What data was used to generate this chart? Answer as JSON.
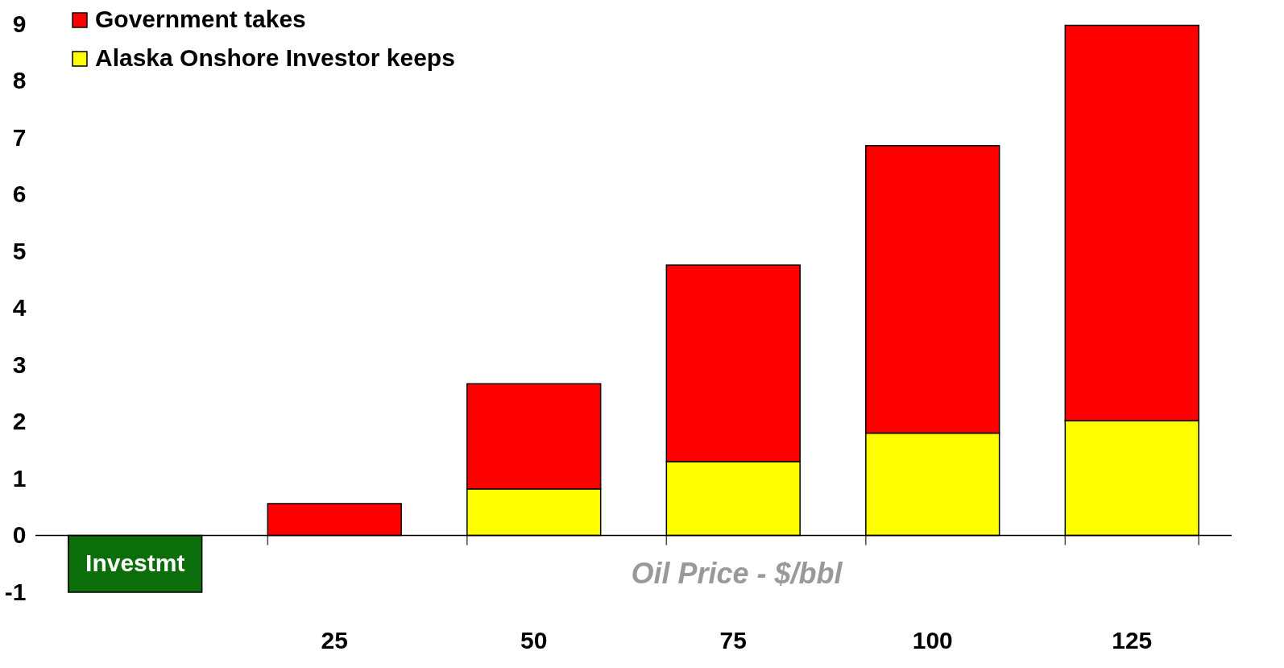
{
  "chart_data": {
    "type": "bar",
    "stacked": true,
    "xlabel": "Oil Price - $/bbl",
    "categories": [
      null,
      "25",
      "50",
      "75",
      "100",
      "125"
    ],
    "series": [
      {
        "name": "Investmt",
        "color": "#0b6e0b",
        "values": [
          -1,
          null,
          null,
          null,
          null,
          null
        ]
      },
      {
        "name": "Alaska Onshore Investor keeps",
        "color": "#ffff00",
        "values": [
          null,
          null,
          0.82,
          1.3,
          1.8,
          2.02
        ]
      },
      {
        "name": "Government takes",
        "color": "#ff0000",
        "values": [
          null,
          0.56,
          1.85,
          3.46,
          5.06,
          6.96
        ]
      }
    ],
    "ylim": [
      -1,
      9
    ],
    "yticks": [
      -1,
      0,
      1,
      2,
      3,
      4,
      5,
      6,
      7,
      8,
      9
    ],
    "legend": "top left"
  }
}
